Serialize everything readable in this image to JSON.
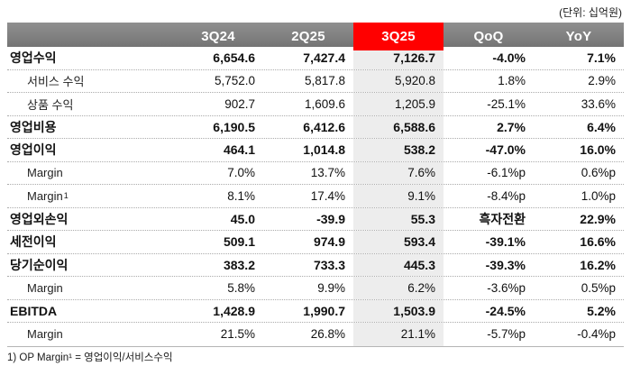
{
  "unit_label": "(단위: 십억원)",
  "footnote": "1) OP Margin¹ = 영업이익/서비스수익",
  "colors": {
    "header_gray": "#7e7e7e",
    "accent_red": "#ff0000",
    "highlight_column_bg": "#ededed",
    "header_text": "#ffffff",
    "body_text": "#111111"
  },
  "chart_data": {
    "type": "table",
    "title": "",
    "unit": "십억원",
    "columns": [
      "3Q24",
      "2Q25",
      "3Q25",
      "QoQ",
      "YoY"
    ],
    "highlight_column": "3Q25",
    "highlight_column_index": 2,
    "rows": [
      {
        "label": "영업수익",
        "bold": true,
        "indent": false,
        "values": [
          "6,654.6",
          "7,427.4",
          "7,126.7",
          "-4.0%",
          "7.1%"
        ]
      },
      {
        "label": "서비스 수익",
        "bold": false,
        "indent": true,
        "values": [
          "5,752.0",
          "5,817.8",
          "5,920.8",
          "1.8%",
          "2.9%"
        ]
      },
      {
        "label": "상품 수익",
        "bold": false,
        "indent": true,
        "values": [
          "902.7",
          "1,609.6",
          "1,205.9",
          "-25.1%",
          "33.6%"
        ]
      },
      {
        "label": "영업비용",
        "bold": true,
        "indent": false,
        "values": [
          "6,190.5",
          "6,412.6",
          "6,588.6",
          "2.7%",
          "6.4%"
        ]
      },
      {
        "label": "영업이익",
        "bold": true,
        "indent": false,
        "values": [
          "464.1",
          "1,014.8",
          "538.2",
          "-47.0%",
          "16.0%"
        ]
      },
      {
        "label": "Margin",
        "bold": false,
        "indent": true,
        "values": [
          "7.0%",
          "13.7%",
          "7.6%",
          "-6.1%p",
          "0.6%p"
        ]
      },
      {
        "label": "Margin",
        "label_sup": "1",
        "bold": false,
        "indent": true,
        "values": [
          "8.1%",
          "17.4%",
          "9.1%",
          "-8.4%p",
          "1.0%p"
        ]
      },
      {
        "label": "영업외손익",
        "bold": true,
        "indent": false,
        "values": [
          "45.0",
          "-39.9",
          "55.3",
          "흑자전환",
          "22.9%"
        ]
      },
      {
        "label": "세전이익",
        "bold": true,
        "indent": false,
        "values": [
          "509.1",
          "974.9",
          "593.4",
          "-39.1%",
          "16.6%"
        ]
      },
      {
        "label": "당기순이익",
        "bold": true,
        "indent": false,
        "values": [
          "383.2",
          "733.3",
          "445.3",
          "-39.3%",
          "16.2%"
        ]
      },
      {
        "label": "Margin",
        "bold": false,
        "indent": true,
        "values": [
          "5.8%",
          "9.9%",
          "6.2%",
          "-3.6%p",
          "0.5%p"
        ]
      },
      {
        "label": "EBITDA",
        "bold": true,
        "indent": false,
        "values": [
          "1,428.9",
          "1,990.7",
          "1,503.9",
          "-24.5%",
          "5.2%"
        ]
      },
      {
        "label": "Margin",
        "bold": false,
        "indent": true,
        "values": [
          "21.5%",
          "26.8%",
          "21.1%",
          "-5.7%p",
          "-0.4%p"
        ]
      }
    ]
  }
}
